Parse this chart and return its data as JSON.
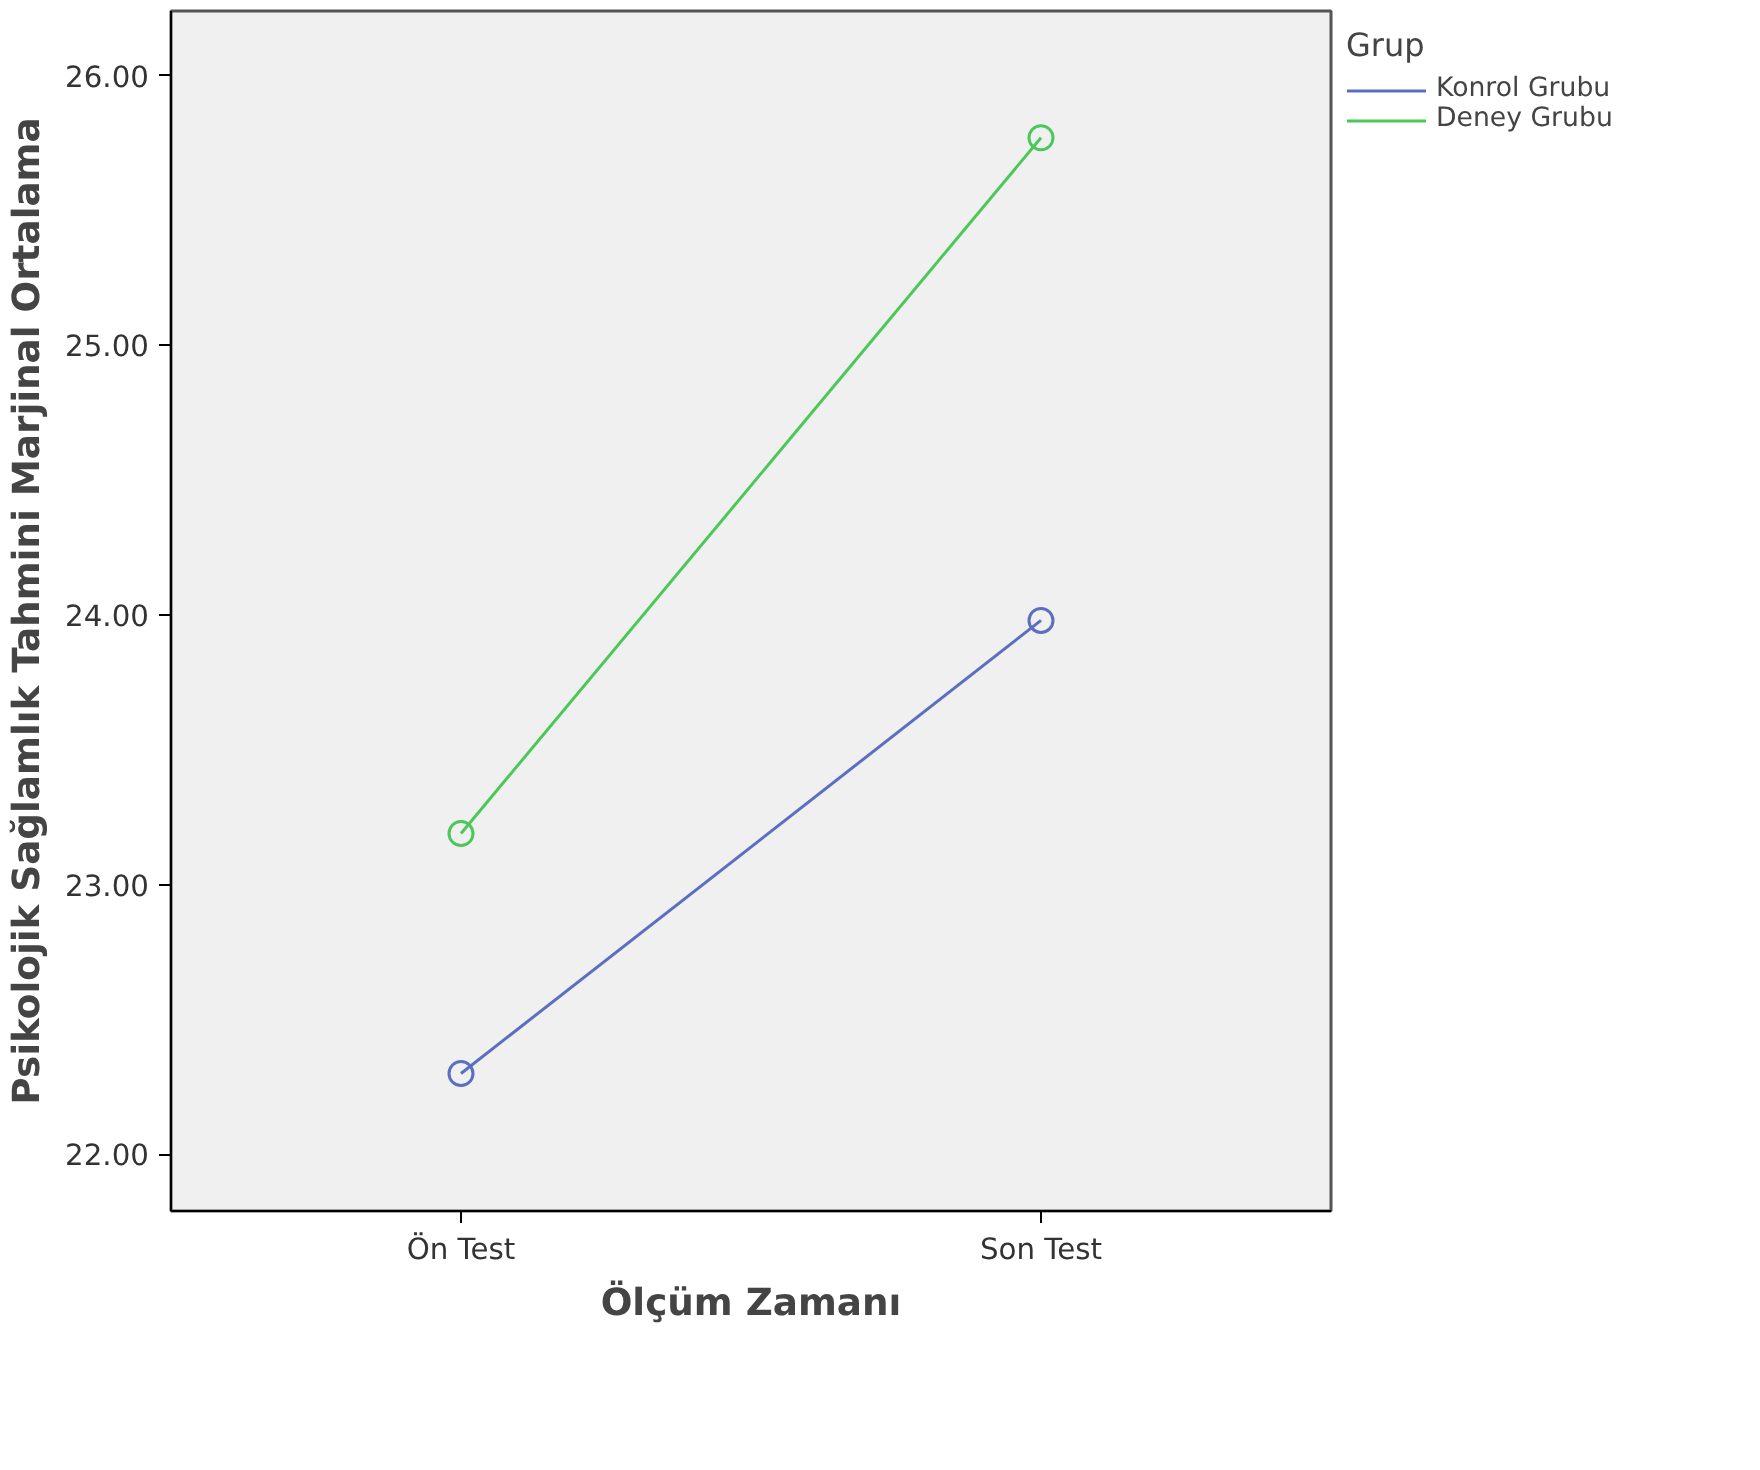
{
  "chart_data": {
    "type": "line",
    "xlabel": "Ölçüm Zamanı",
    "ylabel": "Psikolojik Sağlamlık Tahmini Marjinal Ortalama",
    "legend_title": "Grup",
    "categories": [
      "Ön Test",
      "Son Test"
    ],
    "series": [
      {
        "name": "Konrol Grubu",
        "color": "#5a6fc0",
        "values": [
          22.3,
          23.98
        ]
      },
      {
        "name": "Deney Grubu",
        "color": "#4cc85a",
        "values": [
          23.19,
          25.77
        ]
      }
    ],
    "ylim": [
      21.79,
      26.24
    ],
    "yticks": [
      {
        "value": 22,
        "label": "22.00"
      },
      {
        "value": 23,
        "label": "23.00"
      },
      {
        "value": 24,
        "label": "24.00"
      },
      {
        "value": 25,
        "label": "25.00"
      },
      {
        "value": 26,
        "label": "26.00"
      }
    ],
    "grid": false,
    "legend": "top right",
    "marker": "circle",
    "line_style": "solid"
  }
}
